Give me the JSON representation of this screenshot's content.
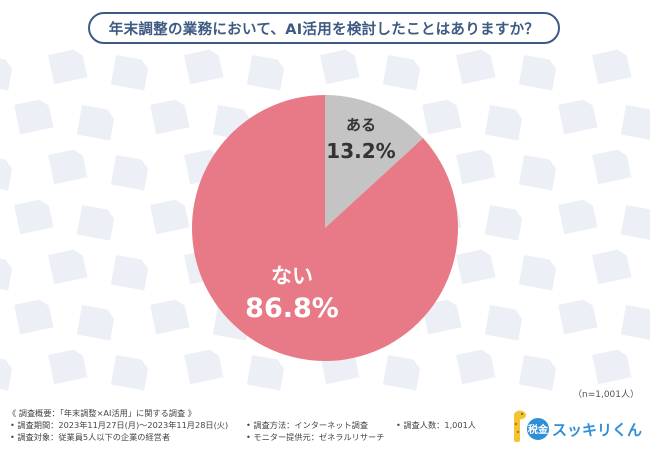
{
  "title": "年末調整の業務において、AI活用を検討したことはありますか？",
  "sample_size": "（n=1,001人）",
  "chart_data": {
    "type": "pie",
    "slices": [
      {
        "label": "ある",
        "value": 13.2,
        "display": "13.2%",
        "color": "#c4c4c4"
      },
      {
        "label": "ない",
        "value": 86.8,
        "display": "86.8%",
        "color": "#e77a86"
      }
    ]
  },
  "footer": {
    "overview": "《 調査概要：「年末調整×AI活用」に関する調査 》",
    "period": "• 調査期間：2023年11月27日(月)〜2023年11月28日(火)",
    "method": "• 調査方法：インターネット調査",
    "count": "• 調査人数：1,001人",
    "target": "• 調査対象：従業員5人以下の企業の経営者",
    "monitor": "• モニター提供元：ゼネラルリサーチ"
  },
  "logo": {
    "badge": "税金",
    "text": "スッキリくん",
    "color_primary": "#2f8fd6",
    "color_accent": "#f4c430"
  }
}
